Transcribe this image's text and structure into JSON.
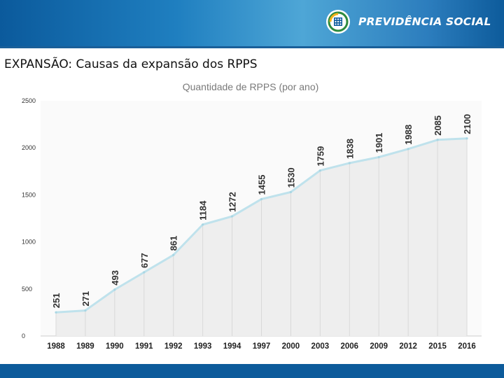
{
  "header": {
    "brand": "PREVIDÊNCIA SOCIAL",
    "colors": {
      "dark": "#0b5a9c",
      "light": "#4ea6d6",
      "footer": "#0d5b9b"
    }
  },
  "slide": {
    "title": "EXPANSÃO: Causas da expansão dos RPPS"
  },
  "chart_data": {
    "type": "area",
    "title": "Quantidade de RPPS (por ano)",
    "categories": [
      "1988",
      "1989",
      "1990",
      "1991",
      "1992",
      "1993",
      "1994",
      "1997",
      "2000",
      "2003",
      "2006",
      "2009",
      "2012",
      "2015",
      "2016"
    ],
    "values": [
      251,
      271,
      493,
      677,
      861,
      1184,
      1272,
      1455,
      1530,
      1759,
      1838,
      1901,
      1988,
      2085,
      2100
    ],
    "ylim": [
      0,
      2500
    ],
    "yticks": [
      0,
      500,
      1000,
      1500,
      2000,
      2500
    ],
    "xlabel": "",
    "ylabel": "",
    "line_color": "#bfe2ec",
    "fill_color": "#eeeeee"
  }
}
